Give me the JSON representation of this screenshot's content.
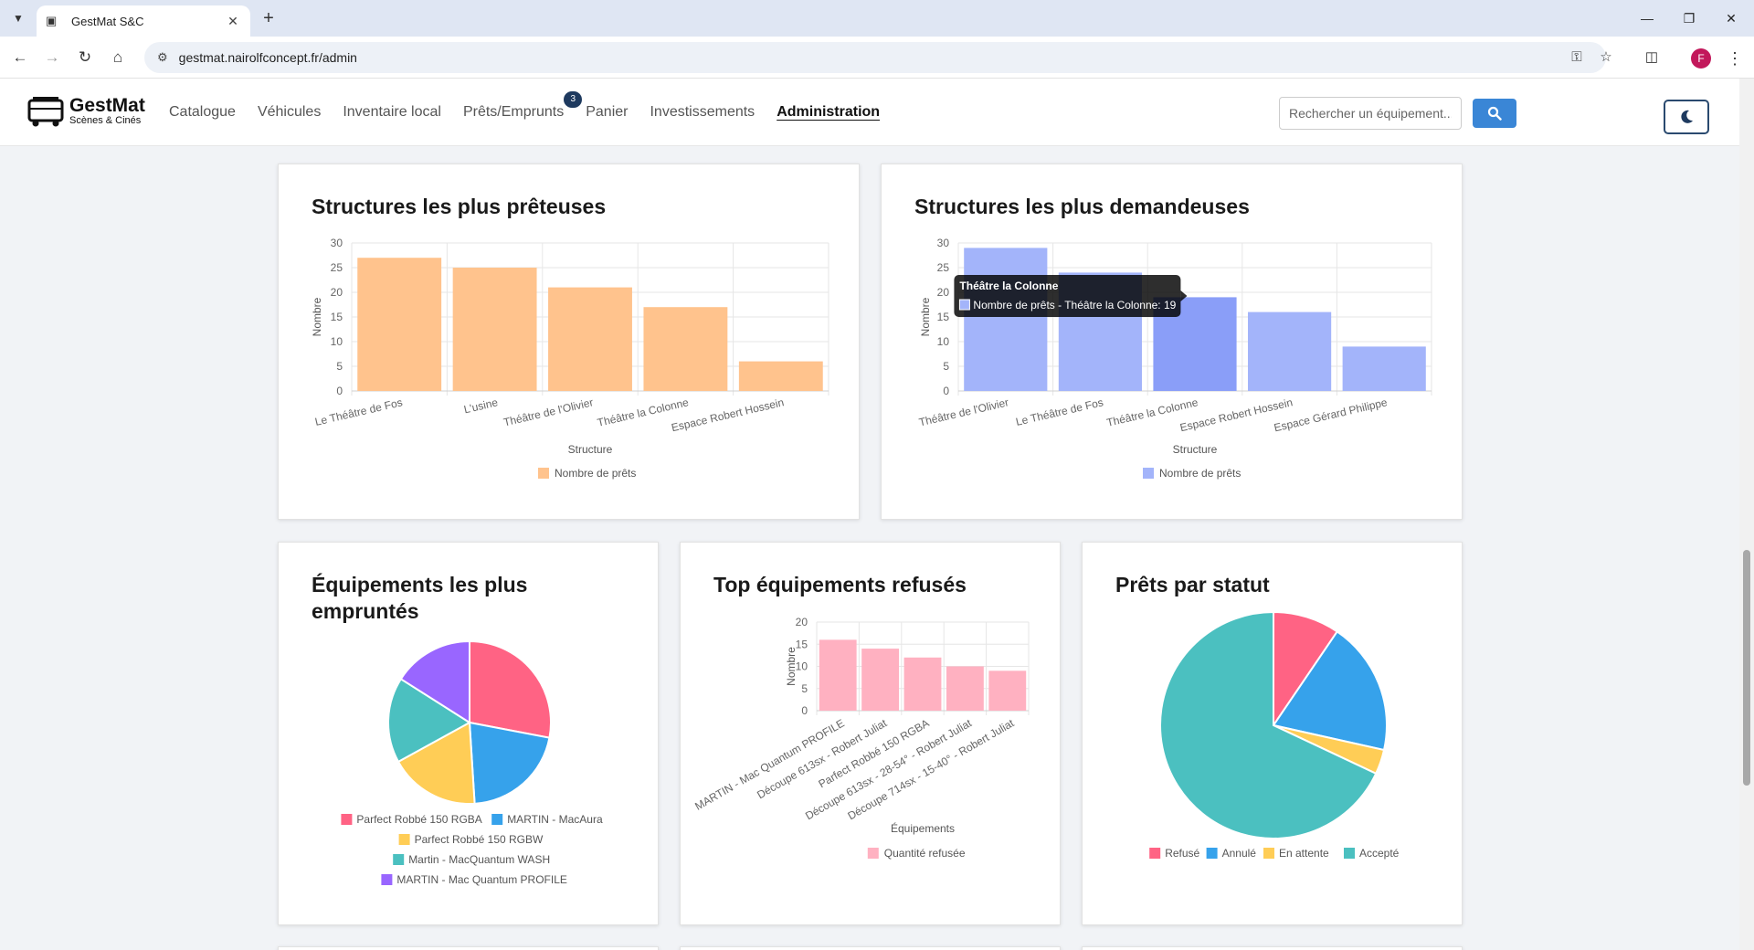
{
  "browser": {
    "tab_title": "GestMat S&C",
    "url": "gestmat.nairolfconcept.fr/admin",
    "profile_initial": "F"
  },
  "header": {
    "brand_name": "GestMat",
    "brand_sub": "Scènes & Cinés",
    "nav": [
      {
        "label": "Catalogue"
      },
      {
        "label": "Véhicules"
      },
      {
        "label": "Inventaire local"
      },
      {
        "label": "Prêts/Emprunts",
        "badge": "3"
      },
      {
        "label": "Panier"
      },
      {
        "label": "Investissements"
      },
      {
        "label": "Administration"
      }
    ],
    "search_placeholder": "Rechercher un équipement..."
  },
  "chart_data": [
    {
      "id": "preteuses",
      "type": "bar",
      "title": "Structures les plus prêteuses",
      "xlabel": "Structure",
      "ylabel": "Nombre",
      "ylim": [
        0,
        30
      ],
      "yticks": [
        0,
        5,
        10,
        15,
        20,
        25,
        30
      ],
      "categories": [
        "Le Théâtre de Fos",
        "L'usine",
        "Théâtre de l'Olivier",
        "Théâtre la Colonne",
        "Espace Robert Hossein"
      ],
      "series": [
        {
          "name": "Nombre de prêts",
          "values": [
            27,
            25,
            21,
            17,
            6
          ],
          "color": "#ffc38d"
        }
      ],
      "legend": "bottom"
    },
    {
      "id": "demandeuses",
      "type": "bar",
      "title": "Structures les plus demandeuses",
      "xlabel": "Structure",
      "ylabel": "Nombre",
      "ylim": [
        0,
        30
      ],
      "yticks": [
        0,
        5,
        10,
        15,
        20,
        25,
        30
      ],
      "categories": [
        "Théâtre de l'Olivier",
        "Le Théâtre de Fos",
        "Théâtre la Colonne",
        "Espace Robert Hossein",
        "Espace Gérard Philippe"
      ],
      "series": [
        {
          "name": "Nombre de prêts",
          "values": [
            29,
            24,
            19,
            16,
            9
          ],
          "color": "#a3b4fa"
        }
      ],
      "highlight_color": "#8a9ef8",
      "legend": "bottom",
      "tooltip": {
        "index": 2,
        "title": "Théâtre la Colonne",
        "text": "Nombre de prêts - Théâtre la Colonne: 19"
      }
    },
    {
      "id": "empruntes",
      "type": "pie",
      "title": "Équipements les plus empruntés",
      "slices": [
        {
          "label": "Parfect Robbé 150 RGBA",
          "value": 28,
          "color": "#ff6384"
        },
        {
          "label": "MARTIN - MacAura",
          "value": 21,
          "color": "#36a2eb"
        },
        {
          "label": "Parfect Robbé 150 RGBW",
          "value": 18,
          "color": "#ffcd56"
        },
        {
          "label": "Martin - MacQuantum WASH",
          "value": 17,
          "color": "#4bc0c0"
        },
        {
          "label": "MARTIN - Mac Quantum PROFILE",
          "value": 16,
          "color": "#9966ff"
        }
      ],
      "legend": "bottom"
    },
    {
      "id": "refuses",
      "type": "bar",
      "title": "Top équipements refusés",
      "xlabel": "Équipements",
      "ylabel": "Nombre",
      "ylim": [
        0,
        20
      ],
      "yticks": [
        0,
        5,
        10,
        15,
        20
      ],
      "categories": [
        "MARTIN - Mac Quantum PROFILE",
        "Découpe 613sx - Robert Juliat",
        "Parfect Robbé 150 RGBA",
        "Découpe 613sx - 28-54° - Robert Juliat",
        "Découpe 714sx - 15-40° - Robert Juliat"
      ],
      "series": [
        {
          "name": "Quantité refusée",
          "values": [
            16,
            14,
            12,
            10,
            9
          ],
          "color": "#ffb1c1"
        }
      ],
      "legend": "bottom"
    },
    {
      "id": "statut",
      "type": "pie",
      "title": "Prêts par statut",
      "slices": [
        {
          "label": "Refusé",
          "value": 9.5,
          "color": "#ff6384"
        },
        {
          "label": "Annulé",
          "value": 19,
          "color": "#36a2eb"
        },
        {
          "label": "En attente",
          "value": 3.5,
          "color": "#ffcd56"
        },
        {
          "label": "Accepté",
          "value": 68,
          "color": "#4bc0c0"
        }
      ],
      "legend": "bottom"
    }
  ]
}
